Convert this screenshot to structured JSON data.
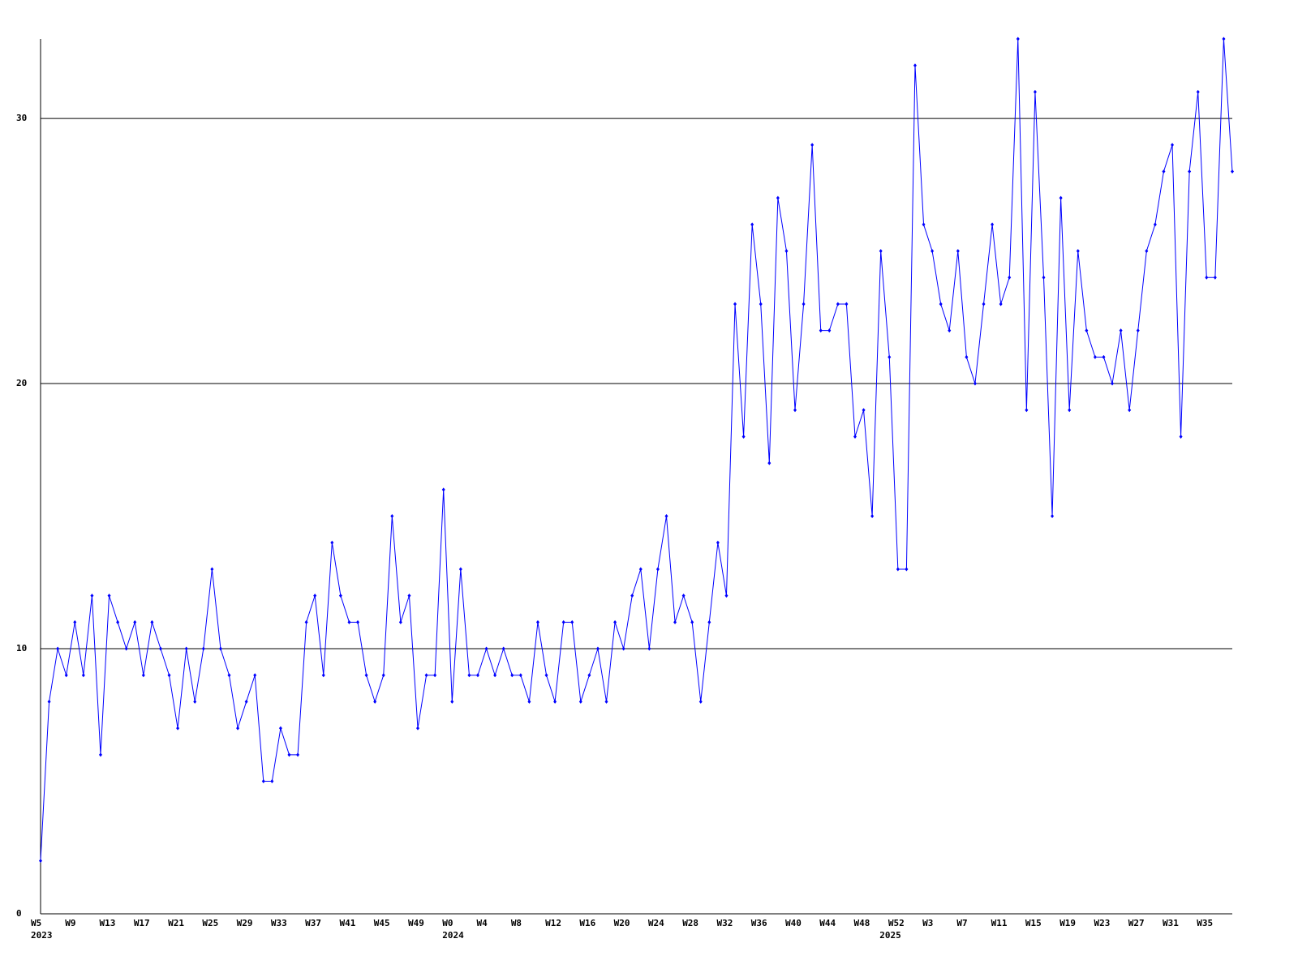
{
  "chart_data": {
    "type": "line",
    "categories": [
      "W5",
      null,
      null,
      null,
      "W9",
      null,
      null,
      null,
      "W13",
      null,
      null,
      null,
      "W17",
      null,
      null,
      null,
      "W21",
      null,
      null,
      null,
      "W25",
      null,
      null,
      null,
      "W29",
      null,
      null,
      null,
      "W33",
      null,
      null,
      null,
      "W37",
      null,
      null,
      null,
      "W41",
      null,
      null,
      null,
      "W45",
      null,
      null,
      null,
      "W49",
      null,
      null,
      null,
      "W0",
      null,
      null,
      null,
      "W4",
      null,
      null,
      null,
      "W8",
      null,
      null,
      null,
      "W12",
      null,
      null,
      null,
      "W16",
      null,
      null,
      null,
      "W20",
      null,
      null,
      null,
      "W24",
      null,
      null,
      null,
      "W28",
      null,
      null,
      null,
      "W32",
      null,
      null,
      null,
      "W36",
      null,
      null,
      null,
      "W40",
      null,
      null,
      null,
      "W44",
      null,
      null,
      null,
      "W48",
      null,
      null,
      null,
      "W52",
      null,
      null,
      null,
      "W3",
      null,
      null,
      null,
      "W7",
      null,
      null,
      null,
      "W11",
      null,
      null,
      null,
      "W15",
      null,
      null,
      null,
      "W19",
      null,
      null,
      null,
      "W23",
      null,
      null,
      null,
      "W27",
      null,
      null,
      null,
      "W31",
      null,
      null,
      null,
      "W35",
      null,
      null,
      null
    ],
    "year_labels": [
      "2023",
      null,
      null,
      null,
      null,
      null,
      null,
      null,
      null,
      null,
      null,
      null,
      null,
      null,
      null,
      null,
      null,
      null,
      null,
      null,
      null,
      null,
      null,
      null,
      null,
      null,
      null,
      null,
      null,
      null,
      null,
      null,
      null,
      null,
      null,
      null,
      null,
      null,
      null,
      null,
      null,
      null,
      null,
      null,
      null,
      null,
      null,
      null,
      "2024",
      null,
      null,
      null,
      null,
      null,
      null,
      null,
      null,
      null,
      null,
      null,
      null,
      null,
      null,
      null,
      null,
      null,
      null,
      null,
      null,
      null,
      null,
      null,
      null,
      null,
      null,
      null,
      null,
      null,
      null,
      null,
      null,
      null,
      null,
      null,
      null,
      null,
      null,
      null,
      null,
      null,
      null,
      null,
      null,
      null,
      null,
      null,
      null,
      null,
      null,
      "2025",
      null,
      null,
      null,
      null,
      null,
      null,
      null,
      null,
      null,
      null,
      null,
      null,
      null,
      null,
      null,
      null,
      null,
      null,
      null,
      null,
      null,
      null,
      null,
      null,
      null,
      null,
      null,
      null,
      null,
      null,
      null,
      null,
      null,
      null,
      null,
      null,
      null,
      null
    ],
    "values": [
      2,
      8,
      10,
      9,
      11,
      9,
      12,
      6,
      12,
      11,
      10,
      11,
      9,
      11,
      10,
      9,
      7,
      10,
      8,
      10,
      13,
      10,
      9,
      7,
      8,
      9,
      5,
      5,
      7,
      6,
      6,
      11,
      12,
      9,
      14,
      12,
      11,
      11,
      9,
      8,
      9,
      15,
      11,
      12,
      7,
      9,
      9,
      16,
      8,
      13,
      9,
      9,
      10,
      9,
      10,
      9,
      9,
      8,
      11,
      9,
      8,
      11,
      11,
      8,
      9,
      10,
      8,
      11,
      10,
      12,
      13,
      10,
      13,
      15,
      11,
      12,
      11,
      8,
      11,
      14,
      12,
      23,
      18,
      26,
      23,
      17,
      27,
      25,
      19,
      23,
      29,
      22,
      22,
      23,
      23,
      18,
      19,
      15,
      25,
      21,
      13,
      13,
      32,
      26,
      25,
      23,
      22,
      25,
      21,
      20,
      23,
      26,
      23,
      24,
      33,
      19,
      31,
      24,
      15,
      27,
      19,
      25,
      22,
      21,
      21,
      20,
      22,
      19,
      22,
      25,
      26,
      28,
      29,
      18,
      28,
      31,
      24,
      24,
      33,
      28
    ],
    "color": "#0000ff",
    "ylim": [
      0,
      33
    ],
    "yticks": [
      0,
      10,
      20,
      30
    ],
    "grid": true
  }
}
